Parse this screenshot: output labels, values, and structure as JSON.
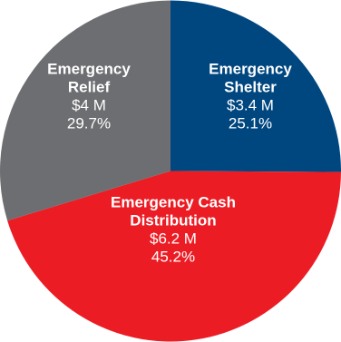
{
  "chart_data": {
    "type": "pie",
    "title": "",
    "slices": [
      {
        "name_lines": [
          "Emergency",
          "Shelter"
        ],
        "amount_label": "$3.4 M",
        "percent_label": "25.1%",
        "value": 25.1,
        "color": "#00467f"
      },
      {
        "name_lines": [
          "Emergency Cash",
          "Distribution"
        ],
        "amount_label": "$6.2 M",
        "percent_label": "45.2%",
        "value": 45.2,
        "color": "#ec1c24"
      },
      {
        "name_lines": [
          "Emergency",
          "Relief"
        ],
        "amount_label": "$4 M",
        "percent_label": "29.7%",
        "value": 29.7,
        "color": "#6d6e71"
      }
    ],
    "start": "top, clockwise",
    "legend": "none"
  }
}
